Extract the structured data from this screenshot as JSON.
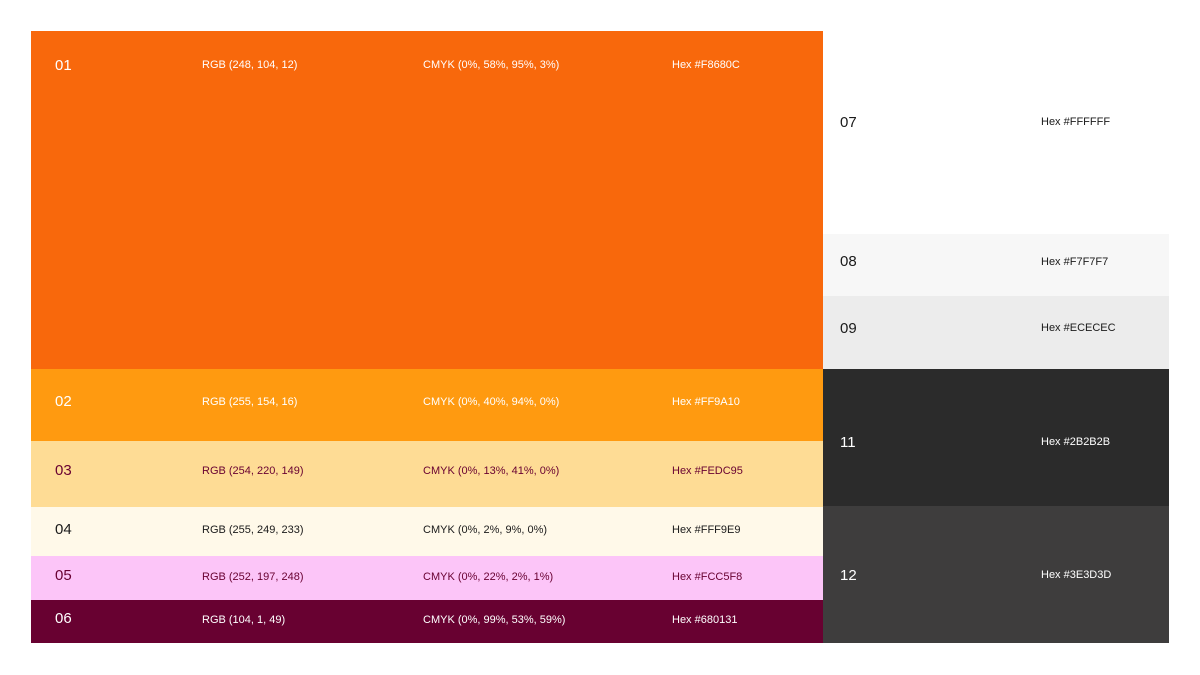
{
  "swatches_left": [
    {
      "number": "01",
      "rgb": "RGB (248, 104, 12)",
      "cmyk": "CMYK (0%, 58%, 95%, 3%)",
      "hex": "Hex #F8680C",
      "fill": "#F8680C",
      "text_color": "#FFFFFF"
    },
    {
      "number": "02",
      "rgb": "RGB (255, 154, 16)",
      "cmyk": "CMYK (0%, 40%, 94%, 0%)",
      "hex": "Hex #FF9A10",
      "fill": "#FF9A10",
      "text_color": "#FFFFFF"
    },
    {
      "number": "03",
      "rgb": "RGB (254, 220, 149)",
      "cmyk": "CMYK (0%, 13%, 41%, 0%)",
      "hex": "Hex #FEDC95",
      "fill": "#FEDC95",
      "text_color": "#680131"
    },
    {
      "number": "04",
      "rgb": "RGB (255, 249, 233)",
      "cmyk": "CMYK (0%, 2%, 9%, 0%)",
      "hex": "Hex #FFF9E9",
      "fill": "#FFF9E9",
      "text_color": "#1A1A1A"
    },
    {
      "number": "05",
      "rgb": "RGB (252, 197, 248)",
      "cmyk": "CMYK (0%, 22%, 2%, 1%)",
      "hex": "Hex #FCC5F8",
      "fill": "#FCC5F8",
      "text_color": "#680131"
    },
    {
      "number": "06",
      "rgb": "RGB (104, 1, 49)",
      "cmyk": "CMYK (0%, 99%, 53%, 59%)",
      "hex": "Hex #680131",
      "fill": "#680131",
      "text_color": "#FFFFFF"
    }
  ],
  "swatches_right": [
    {
      "number": "07",
      "hex": "Hex #FFFFFF",
      "fill": "#FFFFFF",
      "text_color": "#1A1A1A"
    },
    {
      "number": "08",
      "hex": "Hex #F7F7F7",
      "fill": "#F7F7F7",
      "text_color": "#1A1A1A"
    },
    {
      "number": "09",
      "hex": "Hex #ECECEC",
      "fill": "#ECECEC",
      "text_color": "#1A1A1A"
    },
    {
      "number": "11",
      "hex": "Hex #2B2B2B",
      "fill": "#2B2B2B",
      "text_color": "#FFFFFF"
    },
    {
      "number": "12",
      "hex": "Hex #3E3D3D",
      "fill": "#3E3D3D",
      "text_color": "#FFFFFF"
    }
  ]
}
